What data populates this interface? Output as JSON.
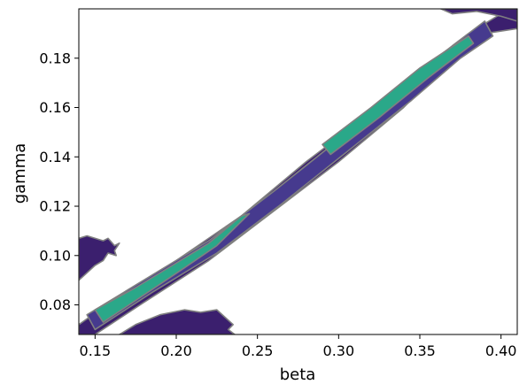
{
  "chart_data": {
    "type": "contour",
    "xlabel": "beta",
    "ylabel": "gamma",
    "xlim": [
      0.14,
      0.41
    ],
    "ylim": [
      0.068,
      0.2
    ],
    "x_ticks": [
      {
        "value": 0.15,
        "label": "0.15"
      },
      {
        "value": 0.2,
        "label": "0.20"
      },
      {
        "value": 0.25,
        "label": "0.25"
      },
      {
        "value": 0.3,
        "label": "0.30"
      },
      {
        "value": 0.35,
        "label": "0.35"
      },
      {
        "value": 0.4,
        "label": "0.40"
      }
    ],
    "y_ticks": [
      {
        "value": 0.08,
        "label": "0.08"
      },
      {
        "value": 0.1,
        "label": "0.10"
      },
      {
        "value": 0.12,
        "label": "0.12"
      },
      {
        "value": 0.14,
        "label": "0.14"
      },
      {
        "value": 0.16,
        "label": "0.16"
      },
      {
        "value": 0.18,
        "label": "0.18"
      }
    ],
    "grid": false,
    "legend": "none",
    "colors": {
      "outer_fill": "#3b1f6e",
      "middle_fill": "#463a8e",
      "core_fill": "#2aa889",
      "contour_line": "#808080",
      "frame": "#000000"
    },
    "regions": [
      {
        "level": "outer",
        "points": [
          [
            0.14,
            0.072
          ],
          [
            0.17,
            0.086
          ],
          [
            0.2,
            0.098
          ],
          [
            0.24,
            0.116
          ],
          [
            0.28,
            0.138
          ],
          [
            0.32,
            0.158
          ],
          [
            0.36,
            0.18
          ],
          [
            0.38,
            0.19
          ],
          [
            0.405,
            0.2
          ],
          [
            0.41,
            0.2
          ],
          [
            0.41,
            0.192
          ],
          [
            0.39,
            0.19
          ],
          [
            0.37,
            0.18
          ],
          [
            0.34,
            0.16
          ],
          [
            0.3,
            0.138
          ],
          [
            0.26,
            0.118
          ],
          [
            0.22,
            0.098
          ],
          [
            0.18,
            0.081
          ],
          [
            0.15,
            0.068
          ],
          [
            0.14,
            0.068
          ]
        ]
      },
      {
        "level": "outer",
        "points": [
          [
            0.14,
            0.107
          ],
          [
            0.145,
            0.108
          ],
          [
            0.155,
            0.106
          ],
          [
            0.158,
            0.107
          ],
          [
            0.162,
            0.104
          ],
          [
            0.165,
            0.105
          ],
          [
            0.162,
            0.102
          ],
          [
            0.163,
            0.1
          ],
          [
            0.158,
            0.101
          ],
          [
            0.155,
            0.098
          ],
          [
            0.15,
            0.096
          ],
          [
            0.145,
            0.093
          ],
          [
            0.14,
            0.09
          ]
        ]
      },
      {
        "level": "outer",
        "points": [
          [
            0.165,
            0.068
          ],
          [
            0.175,
            0.072
          ],
          [
            0.19,
            0.076
          ],
          [
            0.205,
            0.078
          ],
          [
            0.215,
            0.077
          ],
          [
            0.225,
            0.078
          ],
          [
            0.23,
            0.075
          ],
          [
            0.235,
            0.072
          ],
          [
            0.232,
            0.07
          ],
          [
            0.236,
            0.068
          ]
        ]
      },
      {
        "level": "outer",
        "points": [
          [
            0.363,
            0.2
          ],
          [
            0.37,
            0.198
          ],
          [
            0.385,
            0.199
          ],
          [
            0.4,
            0.197
          ],
          [
            0.41,
            0.195
          ],
          [
            0.41,
            0.2
          ]
        ]
      },
      {
        "level": "middle",
        "points": [
          [
            0.145,
            0.076
          ],
          [
            0.18,
            0.09
          ],
          [
            0.22,
            0.106
          ],
          [
            0.26,
            0.126
          ],
          [
            0.3,
            0.147
          ],
          [
            0.34,
            0.168
          ],
          [
            0.37,
            0.185
          ],
          [
            0.39,
            0.195
          ],
          [
            0.395,
            0.189
          ],
          [
            0.375,
            0.18
          ],
          [
            0.345,
            0.163
          ],
          [
            0.305,
            0.142
          ],
          [
            0.265,
            0.121
          ],
          [
            0.225,
            0.101
          ],
          [
            0.185,
            0.085
          ],
          [
            0.15,
            0.07
          ]
        ]
      },
      {
        "level": "core",
        "points": [
          [
            0.15,
            0.078
          ],
          [
            0.175,
            0.087
          ],
          [
            0.2,
            0.097
          ],
          [
            0.22,
            0.105
          ],
          [
            0.24,
            0.116
          ],
          [
            0.245,
            0.117
          ],
          [
            0.225,
            0.104
          ],
          [
            0.205,
            0.095
          ],
          [
            0.18,
            0.084
          ],
          [
            0.155,
            0.073
          ]
        ]
      },
      {
        "level": "core",
        "points": [
          [
            0.29,
            0.145
          ],
          [
            0.32,
            0.16
          ],
          [
            0.35,
            0.176
          ],
          [
            0.38,
            0.189
          ],
          [
            0.383,
            0.186
          ],
          [
            0.355,
            0.172
          ],
          [
            0.325,
            0.156
          ],
          [
            0.295,
            0.141
          ]
        ]
      }
    ]
  }
}
